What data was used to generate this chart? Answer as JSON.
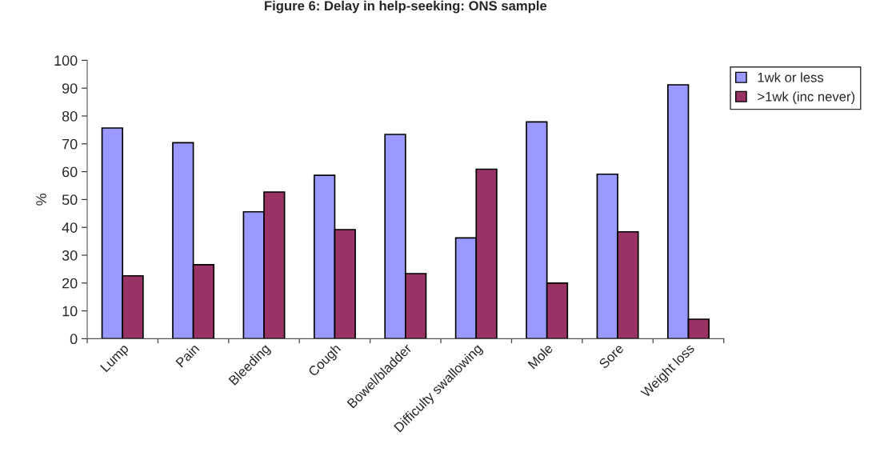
{
  "chart_data": {
    "type": "bar",
    "title": "Figure 6: Delay in help-seeking: ONS sample",
    "ylabel": "%",
    "categories": [
      "Lump",
      "Pain",
      "Bleeding",
      "Cough",
      "Bowel/bladder",
      "Difficulty swallowing",
      "Mole",
      "Sore",
      "Weight loss"
    ],
    "series": [
      {
        "name": "1wk or less",
        "color": "#9999ff",
        "values": [
          75.7,
          70.4,
          45.6,
          58.7,
          73.4,
          36.2,
          77.9,
          59.1,
          91.2
        ]
      },
      {
        "name": ">1wk (inc never)",
        "color": "#993366",
        "values": [
          22.6,
          26.6,
          52.7,
          39.2,
          23.4,
          60.9,
          20.0,
          38.4,
          7.0
        ]
      }
    ],
    "ylim": [
      0,
      100
    ],
    "yticks": [
      0,
      10,
      20,
      30,
      40,
      50,
      60,
      70,
      80,
      90,
      100
    ],
    "grid": false,
    "legend": "top right"
  }
}
